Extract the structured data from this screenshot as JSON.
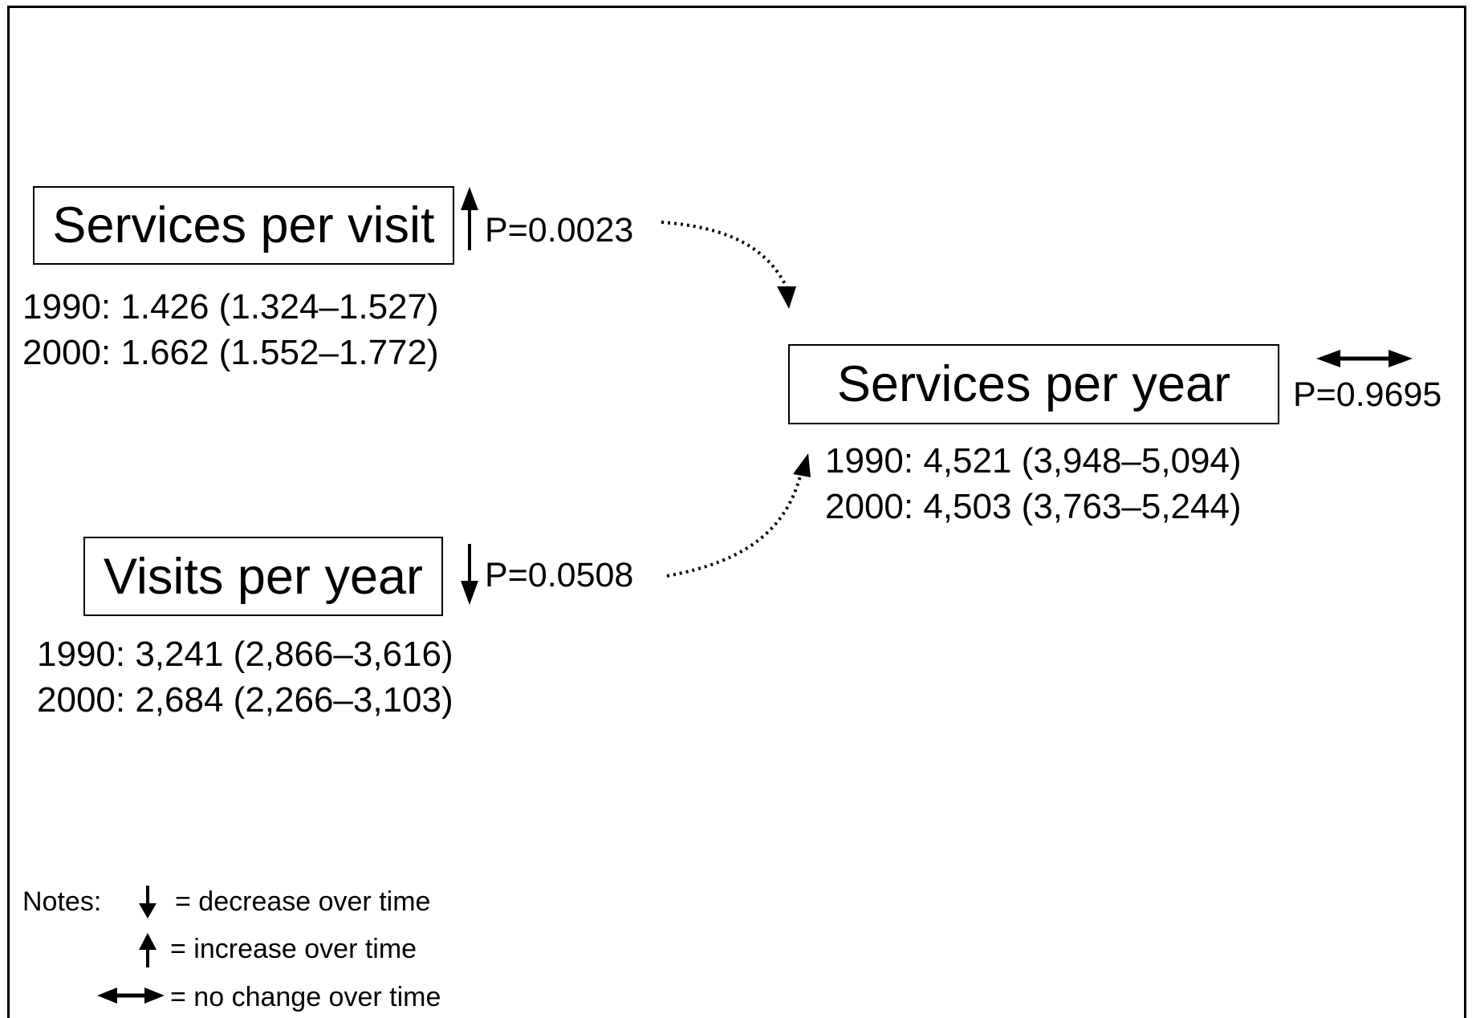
{
  "nodes": {
    "services_per_visit": {
      "label": "Services per visit",
      "p_value": "P=0.0023",
      "trend": "increase",
      "values": [
        "1990: 1.426 (1.324–1.527)",
        "2000: 1.662 (1.552–1.772)"
      ]
    },
    "visits_per_year": {
      "label": "Visits per year",
      "p_value": "P=0.0508",
      "trend": "decrease",
      "values": [
        "1990: 3,241 (2,866–3,616)",
        "2000: 2,684 (2,266–3,103)"
      ]
    },
    "services_per_year": {
      "label": "Services per year",
      "p_value": "P=0.9695",
      "trend": "no change",
      "values": [
        "1990: 4,521 (3,948–5,094)",
        "2000: 4,503 (3,763–5,244)"
      ]
    }
  },
  "edges": [
    {
      "from": "services_per_visit",
      "to": "services_per_year",
      "style": "dotted"
    },
    {
      "from": "visits_per_year",
      "to": "services_per_year",
      "style": "dotted"
    }
  ],
  "notes": {
    "heading": "Notes:",
    "items": [
      {
        "icon": "down-arrow-icon",
        "text": "= decrease over time"
      },
      {
        "icon": "up-arrow-icon",
        "text": "=  increase over time"
      },
      {
        "icon": "double-arrow-icon",
        "text": "= no change over time"
      }
    ]
  }
}
